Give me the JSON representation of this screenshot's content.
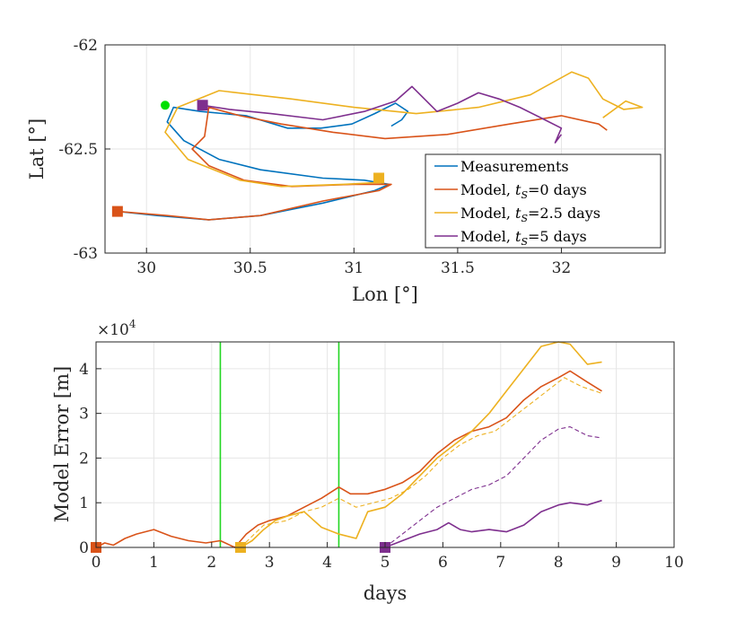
{
  "colors": {
    "measurements": "#0072BD",
    "model_t0": "#D95319",
    "model_t25": "#EDB120",
    "model_t5": "#7E2F8E",
    "marker_start": "#00E000",
    "vline": "#22D622"
  },
  "chart_data": [
    {
      "type": "line",
      "xlabel": "Lon [°]",
      "ylabel": "Lat [°]",
      "xlim": [
        29.8,
        32.5
      ],
      "ylim": [
        -63,
        -62
      ],
      "xticks": [
        30,
        30.5,
        31,
        31.5,
        32
      ],
      "xtick_labels": [
        "30",
        "30.5",
        "31",
        "31.5",
        "32"
      ],
      "yticks": [
        -62,
        -62.5,
        -63
      ],
      "ytick_labels": [
        "-62",
        "-62.5",
        "-63"
      ],
      "grid": true,
      "legend": {
        "position": "bottom-right",
        "entries": [
          "Measurements",
          "Model, t_S=0 days",
          "Model, t_S=2.5 days",
          "Model, t_S=5 days"
        ],
        "labels": [
          {
            "prefix": "Model, ",
            "var": "t",
            "sub": "S",
            "suffix": "=0 days"
          },
          {
            "prefix": "Model, ",
            "var": "t",
            "sub": "S",
            "suffix": "=2.5 days"
          },
          {
            "prefix": "Model, ",
            "var": "t",
            "sub": "S",
            "suffix": "=5 days"
          }
        ],
        "first": "Measurements"
      },
      "start_point": {
        "lon": 30.09,
        "lat": -62.29
      },
      "series": [
        {
          "name": "Measurements",
          "color_key": "measurements",
          "x": [
            29.86,
            30.05,
            30.3,
            30.55,
            30.85,
            31.1,
            31.17,
            31.05,
            30.85,
            30.55,
            30.35,
            30.18,
            30.1,
            30.13,
            30.26,
            30.48,
            30.68,
            30.84,
            30.99,
            31.1,
            31.2,
            31.26,
            31.23,
            31.18
          ],
          "y": [
            -62.8,
            -62.82,
            -62.84,
            -62.82,
            -62.76,
            -62.7,
            -62.67,
            -62.65,
            -62.64,
            -62.6,
            -62.55,
            -62.46,
            -62.37,
            -62.3,
            -62.32,
            -62.34,
            -62.4,
            -62.4,
            -62.38,
            -62.33,
            -62.28,
            -62.32,
            -62.36,
            -62.39
          ]
        },
        {
          "name": "Model, t_S=0 days",
          "color_key": "model_t0",
          "x": [
            29.86,
            30.1,
            30.3,
            30.55,
            30.85,
            31.12,
            31.18,
            31.0,
            30.7,
            30.47,
            30.3,
            30.22,
            30.28,
            30.3,
            30.45,
            30.65,
            30.9,
            31.15,
            31.45,
            31.75,
            32.0,
            32.18,
            32.22
          ],
          "y": [
            -62.8,
            -62.82,
            -62.84,
            -62.82,
            -62.75,
            -62.7,
            -62.67,
            -62.67,
            -62.68,
            -62.65,
            -62.58,
            -62.5,
            -62.44,
            -62.3,
            -62.34,
            -62.38,
            -62.42,
            -62.45,
            -62.43,
            -62.38,
            -62.34,
            -62.38,
            -62.41
          ]
        },
        {
          "name": "Model, t_S=2.5 days",
          "color_key": "model_t25",
          "x": [
            31.12,
            31.14,
            30.95,
            30.65,
            30.45,
            30.2,
            30.09,
            30.15,
            30.35,
            30.7,
            31.0,
            31.3,
            31.6,
            31.85,
            32.05,
            32.13,
            32.2,
            32.3,
            32.39,
            32.31,
            32.2
          ],
          "y": [
            -62.65,
            -62.66,
            -62.67,
            -62.68,
            -62.65,
            -62.55,
            -62.42,
            -62.3,
            -62.22,
            -62.26,
            -62.3,
            -62.33,
            -62.3,
            -62.24,
            -62.13,
            -62.16,
            -62.26,
            -62.31,
            -62.3,
            -62.27,
            -62.35
          ]
        },
        {
          "name": "Model, t_S=5 days",
          "color_key": "model_t5",
          "x": [
            30.27,
            30.4,
            30.6,
            30.85,
            31.05,
            31.2,
            31.28,
            31.32,
            31.4,
            31.5,
            31.6,
            31.7,
            31.8,
            31.92,
            32.0,
            31.97,
            32.0
          ],
          "y": [
            -62.29,
            -62.31,
            -62.33,
            -62.36,
            -62.32,
            -62.27,
            -62.2,
            -62.24,
            -62.32,
            -62.28,
            -62.23,
            -62.26,
            -62.3,
            -62.36,
            -62.4,
            -62.47,
            -62.43
          ]
        }
      ],
      "markers": [
        {
          "series": "Model, t_S=0 days",
          "lon": 29.86,
          "lat": -62.8,
          "color_key": "model_t0"
        },
        {
          "series": "Model, t_S=2.5 days",
          "lon": 31.12,
          "lat": -62.64,
          "color_key": "model_t25"
        },
        {
          "series": "Model, t_S=5 days",
          "lon": 30.27,
          "lat": -62.29,
          "color_key": "model_t5"
        }
      ]
    },
    {
      "type": "line",
      "xlabel": "days",
      "ylabel": "Model Error [m]",
      "exponent_label": "×10",
      "exponent_power": "4",
      "xlim": [
        0,
        10
      ],
      "ylim": [
        0,
        4.6
      ],
      "xticks": [
        0,
        1,
        2,
        3,
        4,
        5,
        6,
        7,
        8,
        9,
        10
      ],
      "xtick_labels": [
        "0",
        "1",
        "2",
        "3",
        "4",
        "5",
        "6",
        "7",
        "8",
        "9",
        "10"
      ],
      "yticks": [
        0,
        1,
        2,
        3,
        4
      ],
      "ytick_labels": [
        "0",
        "1",
        "2",
        "3",
        "4"
      ],
      "grid": true,
      "vlines": [
        2.15,
        4.2
      ],
      "series": [
        {
          "name": "Model, t_S=0 days",
          "color_key": "model_t0",
          "dashed": false,
          "x": [
            0,
            0.15,
            0.3,
            0.5,
            0.7,
            1.0,
            1.3,
            1.6,
            1.9,
            2.15,
            2.4,
            2.6,
            2.8,
            3.0,
            3.3,
            3.6,
            3.9,
            4.2,
            4.4,
            4.7,
            5.0,
            5.3,
            5.6,
            5.9,
            6.2,
            6.5,
            6.8,
            7.1,
            7.4,
            7.7,
            8.0,
            8.2,
            8.5,
            8.75
          ],
          "y": [
            0.0,
            0.1,
            0.05,
            0.2,
            0.3,
            0.4,
            0.25,
            0.15,
            0.1,
            0.15,
            0.0,
            0.3,
            0.5,
            0.6,
            0.7,
            0.9,
            1.1,
            1.35,
            1.2,
            1.2,
            1.3,
            1.45,
            1.7,
            2.1,
            2.4,
            2.6,
            2.7,
            2.9,
            3.3,
            3.6,
            3.8,
            3.95,
            3.7,
            3.5
          ]
        },
        {
          "name": "Model, t_S=2.5 days",
          "color_key": "model_t25",
          "dashed": false,
          "x": [
            2.5,
            2.7,
            2.9,
            3.1,
            3.3,
            3.6,
            3.9,
            4.2,
            4.5,
            4.7,
            5.0,
            5.3,
            5.6,
            5.9,
            6.2,
            6.5,
            6.8,
            7.1,
            7.4,
            7.7,
            8.0,
            8.2,
            8.5,
            8.75
          ],
          "y": [
            0.0,
            0.15,
            0.4,
            0.6,
            0.7,
            0.8,
            0.45,
            0.3,
            0.2,
            0.8,
            0.9,
            1.2,
            1.6,
            2.0,
            2.3,
            2.6,
            3.0,
            3.5,
            4.0,
            4.5,
            4.6,
            4.55,
            4.1,
            4.15
          ]
        },
        {
          "name": "Model, t_S=2.5 days (dashed)",
          "color_key": "model_t25",
          "dashed": true,
          "x": [
            2.5,
            2.9,
            3.3,
            3.6,
            3.9,
            4.2,
            4.5,
            4.8,
            5.1,
            5.4,
            5.7,
            6.0,
            6.3,
            6.6,
            6.9,
            7.2,
            7.5,
            7.8,
            8.1,
            8.4,
            8.75
          ],
          "y": [
            0.0,
            0.5,
            0.6,
            0.8,
            0.9,
            1.1,
            0.9,
            1.0,
            1.1,
            1.3,
            1.6,
            2.0,
            2.3,
            2.5,
            2.6,
            2.9,
            3.2,
            3.5,
            3.8,
            3.6,
            3.45
          ]
        },
        {
          "name": "Model, t_S=5 days",
          "color_key": "model_t5",
          "dashed": false,
          "x": [
            5.0,
            5.3,
            5.6,
            5.9,
            6.1,
            6.3,
            6.5,
            6.8,
            7.1,
            7.4,
            7.7,
            8.0,
            8.2,
            8.5,
            8.75
          ],
          "y": [
            0.0,
            0.15,
            0.3,
            0.4,
            0.55,
            0.4,
            0.35,
            0.4,
            0.35,
            0.5,
            0.8,
            0.95,
            1.0,
            0.95,
            1.05
          ]
        },
        {
          "name": "Model, t_S=5 days (dashed)",
          "color_key": "model_t5",
          "dashed": true,
          "x": [
            5.0,
            5.3,
            5.6,
            5.9,
            6.2,
            6.5,
            6.8,
            7.1,
            7.4,
            7.7,
            8.0,
            8.2,
            8.5,
            8.75
          ],
          "y": [
            0.0,
            0.3,
            0.6,
            0.9,
            1.1,
            1.3,
            1.4,
            1.6,
            2.0,
            2.4,
            2.65,
            2.7,
            2.5,
            2.45
          ]
        }
      ],
      "markers": [
        {
          "series": "Model, t_S=0 days",
          "x": 0,
          "y": 0,
          "color_key": "model_t0"
        },
        {
          "series": "Model, t_S=2.5 days",
          "x": 2.5,
          "y": 0,
          "color_key": "model_t25"
        },
        {
          "series": "Model, t_S=5 days",
          "x": 5.0,
          "y": 0,
          "color_key": "model_t5"
        }
      ]
    }
  ]
}
